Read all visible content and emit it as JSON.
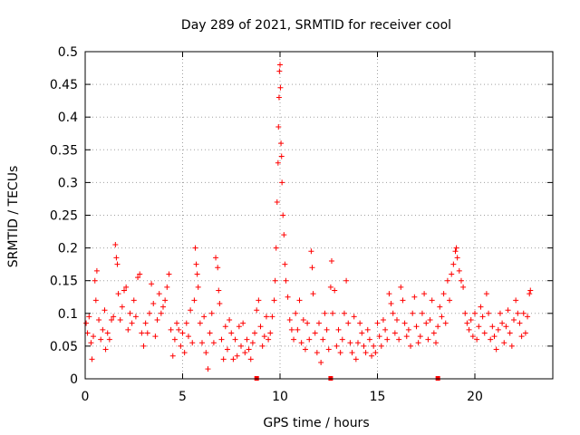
{
  "chart_data": {
    "type": "scatter",
    "title": "Day 289 of 2021, SRMTID for receiver cool",
    "xlabel": "GPS time / hours",
    "ylabel": "SRMTID / TECUs",
    "xlim": [
      0,
      24
    ],
    "ylim": [
      0,
      0.5
    ],
    "x_ticks": [
      0,
      5,
      10,
      15,
      20
    ],
    "y_ticks": [
      0,
      0.05,
      0.1,
      0.15,
      0.2,
      0.25,
      0.3,
      0.35,
      0.4,
      0.45,
      0.5
    ],
    "x_tick_labels": [
      "0",
      "5",
      "10",
      "15",
      "20"
    ],
    "y_tick_labels": [
      "0",
      "0.05",
      "0.1",
      "0.15",
      "0.2",
      "0.25",
      "0.3",
      "0.35",
      "0.4",
      "0.45",
      "0.5"
    ],
    "grid": true,
    "marker": "+",
    "series_color": "#ff0000",
    "baseline_markers_x": [
      8.8,
      12.6,
      18.1
    ],
    "series": [
      {
        "name": "SRMTID",
        "points": [
          [
            0.05,
            0.085
          ],
          [
            0.12,
            0.07
          ],
          [
            0.2,
            0.095
          ],
          [
            0.3,
            0.055
          ],
          [
            0.35,
            0.03
          ],
          [
            0.42,
            0.065
          ],
          [
            0.5,
            0.15
          ],
          [
            0.55,
            0.12
          ],
          [
            0.6,
            0.165
          ],
          [
            0.7,
            0.09
          ],
          [
            0.8,
            0.06
          ],
          [
            0.9,
            0.075
          ],
          [
            1.0,
            0.105
          ],
          [
            1.05,
            0.045
          ],
          [
            1.15,
            0.07
          ],
          [
            1.25,
            0.06
          ],
          [
            1.35,
            0.09
          ],
          [
            1.45,
            0.095
          ],
          [
            1.55,
            0.205
          ],
          [
            1.6,
            0.185
          ],
          [
            1.65,
            0.175
          ],
          [
            1.7,
            0.13
          ],
          [
            1.8,
            0.09
          ],
          [
            1.9,
            0.11
          ],
          [
            2.0,
            0.135
          ],
          [
            2.1,
            0.14
          ],
          [
            2.2,
            0.075
          ],
          [
            2.3,
            0.1
          ],
          [
            2.4,
            0.085
          ],
          [
            2.5,
            0.12
          ],
          [
            2.6,
            0.095
          ],
          [
            2.7,
            0.155
          ],
          [
            2.8,
            0.16
          ],
          [
            2.9,
            0.07
          ],
          [
            3.0,
            0.05
          ],
          [
            3.1,
            0.085
          ],
          [
            3.2,
            0.07
          ],
          [
            3.3,
            0.1
          ],
          [
            3.4,
            0.145
          ],
          [
            3.5,
            0.115
          ],
          [
            3.6,
            0.065
          ],
          [
            3.7,
            0.09
          ],
          [
            3.8,
            0.13
          ],
          [
            3.9,
            0.1
          ],
          [
            4.0,
            0.11
          ],
          [
            4.1,
            0.12
          ],
          [
            4.2,
            0.14
          ],
          [
            4.3,
            0.16
          ],
          [
            4.4,
            0.075
          ],
          [
            4.5,
            0.035
          ],
          [
            4.6,
            0.06
          ],
          [
            4.7,
            0.085
          ],
          [
            4.8,
            0.075
          ],
          [
            4.9,
            0.05
          ],
          [
            5.0,
            0.07
          ],
          [
            5.1,
            0.04
          ],
          [
            5.2,
            0.085
          ],
          [
            5.3,
            0.065
          ],
          [
            5.4,
            0.105
          ],
          [
            5.5,
            0.055
          ],
          [
            5.6,
            0.12
          ],
          [
            5.65,
            0.2
          ],
          [
            5.7,
            0.175
          ],
          [
            5.75,
            0.16
          ],
          [
            5.8,
            0.14
          ],
          [
            5.9,
            0.085
          ],
          [
            6.0,
            0.055
          ],
          [
            6.1,
            0.095
          ],
          [
            6.2,
            0.04
          ],
          [
            6.3,
            0.015
          ],
          [
            6.4,
            0.07
          ],
          [
            6.5,
            0.1
          ],
          [
            6.6,
            0.055
          ],
          [
            6.7,
            0.185
          ],
          [
            6.8,
            0.17
          ],
          [
            6.85,
            0.135
          ],
          [
            6.9,
            0.115
          ],
          [
            7.0,
            0.06
          ],
          [
            7.1,
            0.03
          ],
          [
            7.2,
            0.08
          ],
          [
            7.3,
            0.045
          ],
          [
            7.4,
            0.09
          ],
          [
            7.5,
            0.07
          ],
          [
            7.6,
            0.03
          ],
          [
            7.7,
            0.06
          ],
          [
            7.8,
            0.035
          ],
          [
            7.9,
            0.08
          ],
          [
            8.0,
            0.05
          ],
          [
            8.1,
            0.085
          ],
          [
            8.2,
            0.04
          ],
          [
            8.3,
            0.06
          ],
          [
            8.4,
            0.045
          ],
          [
            8.5,
            0.03
          ],
          [
            8.6,
            0.055
          ],
          [
            8.7,
            0.07
          ],
          [
            8.8,
            0.105
          ],
          [
            8.9,
            0.12
          ],
          [
            9.0,
            0.08
          ],
          [
            9.1,
            0.05
          ],
          [
            9.2,
            0.065
          ],
          [
            9.3,
            0.095
          ],
          [
            9.4,
            0.06
          ],
          [
            9.5,
            0.07
          ],
          [
            9.6,
            0.095
          ],
          [
            9.7,
            0.12
          ],
          [
            9.75,
            0.15
          ],
          [
            9.8,
            0.2
          ],
          [
            9.85,
            0.27
          ],
          [
            9.9,
            0.33
          ],
          [
            9.92,
            0.385
          ],
          [
            9.95,
            0.43
          ],
          [
            9.97,
            0.47
          ],
          [
            10.0,
            0.48
          ],
          [
            10.02,
            0.445
          ],
          [
            10.05,
            0.36
          ],
          [
            10.08,
            0.34
          ],
          [
            10.1,
            0.3
          ],
          [
            10.15,
            0.25
          ],
          [
            10.2,
            0.22
          ],
          [
            10.25,
            0.175
          ],
          [
            10.3,
            0.15
          ],
          [
            10.4,
            0.125
          ],
          [
            10.5,
            0.09
          ],
          [
            10.6,
            0.075
          ],
          [
            10.7,
            0.06
          ],
          [
            10.8,
            0.1
          ],
          [
            10.9,
            0.075
          ],
          [
            11.0,
            0.12
          ],
          [
            11.1,
            0.055
          ],
          [
            11.2,
            0.09
          ],
          [
            11.3,
            0.045
          ],
          [
            11.4,
            0.085
          ],
          [
            11.5,
            0.06
          ],
          [
            11.6,
            0.195
          ],
          [
            11.65,
            0.17
          ],
          [
            11.7,
            0.13
          ],
          [
            11.8,
            0.07
          ],
          [
            11.9,
            0.04
          ],
          [
            12.0,
            0.085
          ],
          [
            12.1,
            0.025
          ],
          [
            12.2,
            0.06
          ],
          [
            12.3,
            0.1
          ],
          [
            12.4,
            0.075
          ],
          [
            12.5,
            0.045
          ],
          [
            12.6,
            0.14
          ],
          [
            12.65,
            0.18
          ],
          [
            12.7,
            0.1
          ],
          [
            12.8,
            0.135
          ],
          [
            12.9,
            0.05
          ],
          [
            13.0,
            0.075
          ],
          [
            13.1,
            0.04
          ],
          [
            13.2,
            0.06
          ],
          [
            13.3,
            0.1
          ],
          [
            13.4,
            0.15
          ],
          [
            13.5,
            0.085
          ],
          [
            13.6,
            0.055
          ],
          [
            13.7,
            0.04
          ],
          [
            13.8,
            0.095
          ],
          [
            13.9,
            0.03
          ],
          [
            14.0,
            0.055
          ],
          [
            14.1,
            0.085
          ],
          [
            14.2,
            0.07
          ],
          [
            14.3,
            0.05
          ],
          [
            14.4,
            0.04
          ],
          [
            14.5,
            0.075
          ],
          [
            14.6,
            0.06
          ],
          [
            14.7,
            0.035
          ],
          [
            14.8,
            0.05
          ],
          [
            14.9,
            0.04
          ],
          [
            15.0,
            0.085
          ],
          [
            15.1,
            0.065
          ],
          [
            15.2,
            0.05
          ],
          [
            15.3,
            0.09
          ],
          [
            15.4,
            0.075
          ],
          [
            15.5,
            0.06
          ],
          [
            15.6,
            0.13
          ],
          [
            15.7,
            0.115
          ],
          [
            15.8,
            0.1
          ],
          [
            15.9,
            0.07
          ],
          [
            16.0,
            0.09
          ],
          [
            16.1,
            0.06
          ],
          [
            16.2,
            0.14
          ],
          [
            16.3,
            0.12
          ],
          [
            16.4,
            0.085
          ],
          [
            16.5,
            0.065
          ],
          [
            16.6,
            0.075
          ],
          [
            16.7,
            0.05
          ],
          [
            16.8,
            0.1
          ],
          [
            16.9,
            0.125
          ],
          [
            17.0,
            0.08
          ],
          [
            17.1,
            0.055
          ],
          [
            17.2,
            0.065
          ],
          [
            17.3,
            0.1
          ],
          [
            17.4,
            0.13
          ],
          [
            17.5,
            0.085
          ],
          [
            17.6,
            0.06
          ],
          [
            17.7,
            0.09
          ],
          [
            17.8,
            0.12
          ],
          [
            17.9,
            0.07
          ],
          [
            18.0,
            0.055
          ],
          [
            18.1,
            0.08
          ],
          [
            18.2,
            0.11
          ],
          [
            18.3,
            0.095
          ],
          [
            18.4,
            0.13
          ],
          [
            18.5,
            0.085
          ],
          [
            18.6,
            0.15
          ],
          [
            18.7,
            0.12
          ],
          [
            18.8,
            0.16
          ],
          [
            18.9,
            0.175
          ],
          [
            19.0,
            0.195
          ],
          [
            19.05,
            0.2
          ],
          [
            19.1,
            0.185
          ],
          [
            19.2,
            0.165
          ],
          [
            19.3,
            0.15
          ],
          [
            19.4,
            0.14
          ],
          [
            19.5,
            0.1
          ],
          [
            19.6,
            0.085
          ],
          [
            19.7,
            0.075
          ],
          [
            19.8,
            0.09
          ],
          [
            19.9,
            0.065
          ],
          [
            20.0,
            0.1
          ],
          [
            20.1,
            0.06
          ],
          [
            20.2,
            0.08
          ],
          [
            20.3,
            0.11
          ],
          [
            20.4,
            0.095
          ],
          [
            20.5,
            0.07
          ],
          [
            20.6,
            0.13
          ],
          [
            20.7,
            0.1
          ],
          [
            20.8,
            0.06
          ],
          [
            20.9,
            0.08
          ],
          [
            21.0,
            0.065
          ],
          [
            21.1,
            0.045
          ],
          [
            21.2,
            0.075
          ],
          [
            21.3,
            0.1
          ],
          [
            21.4,
            0.085
          ],
          [
            21.5,
            0.055
          ],
          [
            21.6,
            0.08
          ],
          [
            21.7,
            0.105
          ],
          [
            21.8,
            0.07
          ],
          [
            21.9,
            0.05
          ],
          [
            22.0,
            0.09
          ],
          [
            22.1,
            0.12
          ],
          [
            22.2,
            0.1
          ],
          [
            22.3,
            0.085
          ],
          [
            22.4,
            0.065
          ],
          [
            22.5,
            0.1
          ],
          [
            22.6,
            0.07
          ],
          [
            22.7,
            0.095
          ],
          [
            22.8,
            0.13
          ],
          [
            22.85,
            0.135
          ]
        ]
      }
    ]
  }
}
